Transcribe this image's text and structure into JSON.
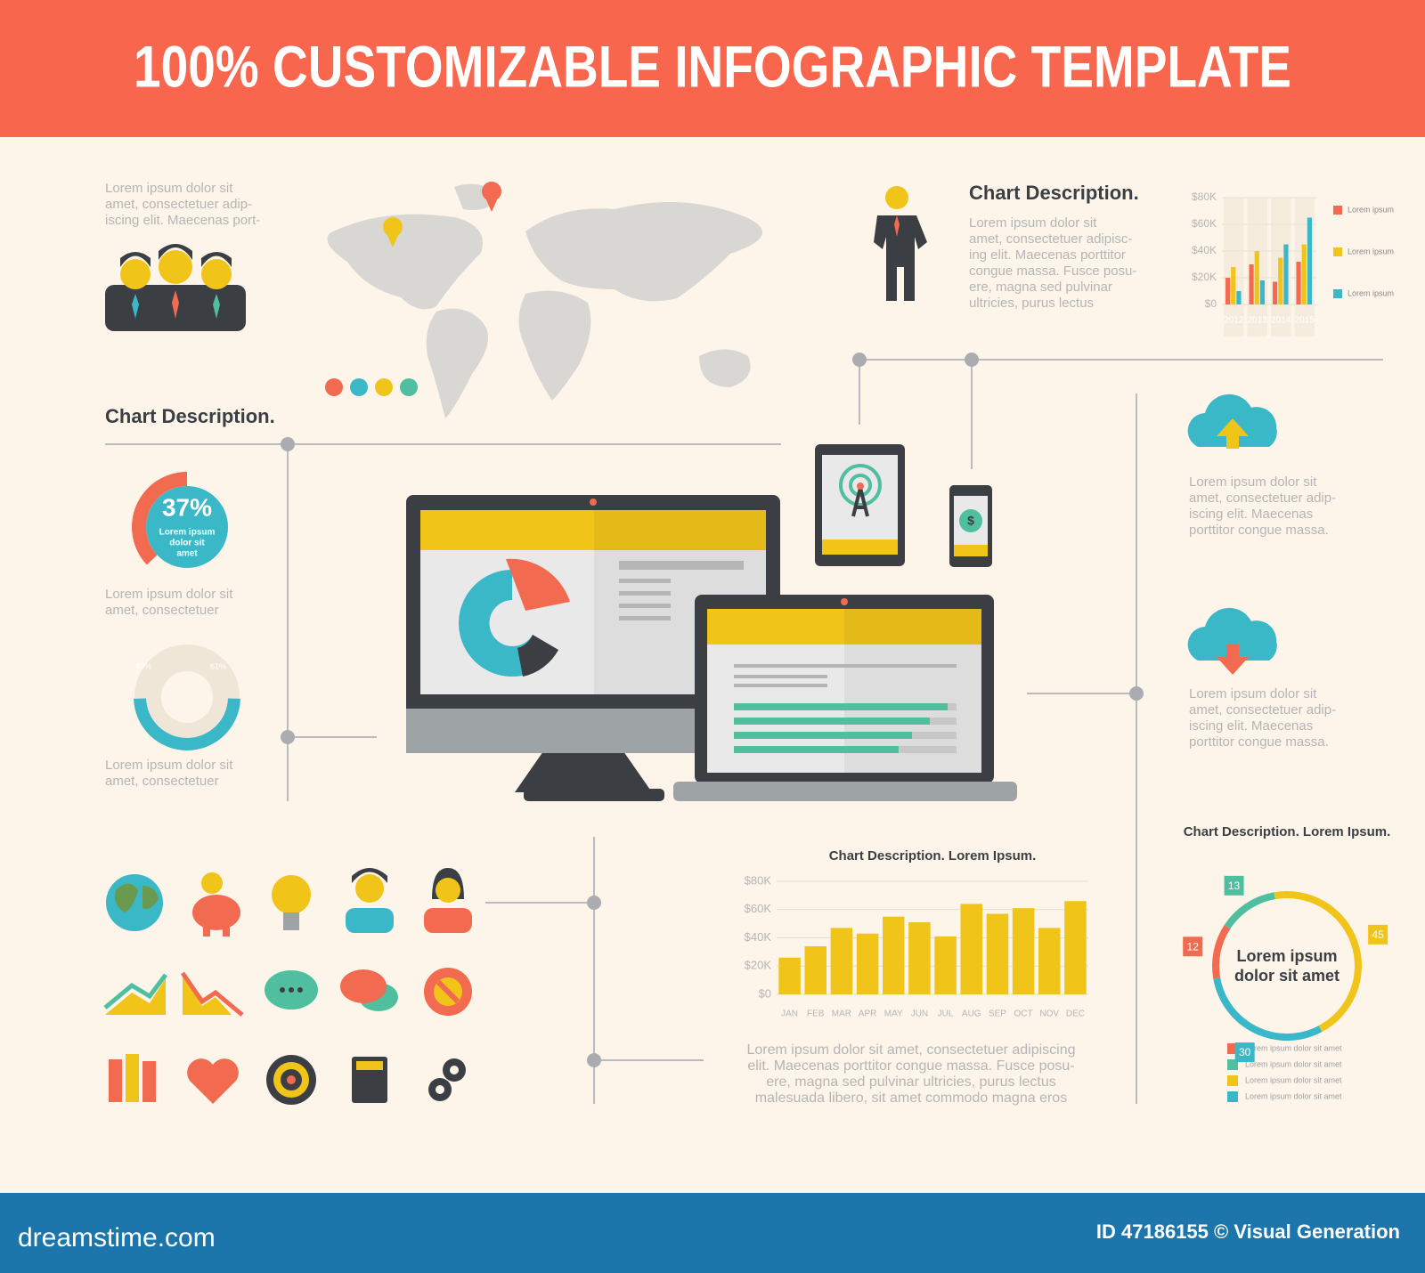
{
  "header": {
    "title": "100% CUSTOMIZABLE INFOGRAPHIC TEMPLATE"
  },
  "intro": {
    "text": [
      "Lorem ipsum dolor sit",
      "amet, consectetuer adip-",
      "iscing elit. Maecenas port-"
    ]
  },
  "left": {
    "title": "Chart Description.",
    "caption_1": [
      "Lorem ipsum dolor sit",
      "amet, consectetuer"
    ],
    "caption_2": [
      "Lorem ipsum dolor sit",
      "amet, consectetuer"
    ]
  },
  "top_right": {
    "title": "Chart Description.",
    "text": [
      "Lorem ipsum dolor sit",
      "amet, consectetuer adipisc-",
      "ing elit. Maecenas porttitor",
      "congue massa. Fusce posu-",
      "ere, magna sed pulvinar",
      "ultricies, purus lectus"
    ]
  },
  "cloud_upload": {
    "text": [
      "Lorem ipsum dolor sit",
      "amet, consectetuer adip-",
      "iscing elit. Maecenas",
      "porttitor congue massa."
    ]
  },
  "cloud_download": {
    "text": [
      "Lorem ipsum dolor sit",
      "amet, consectetuer adip-",
      "iscing elit. Maecenas",
      "porttitor congue massa."
    ]
  },
  "bottom": {
    "text": [
      "Lorem ipsum dolor sit amet, consectetuer adipiscing",
      "elit. Maecenas porttitor congue massa. Fusce posu-",
      "ere, magna sed pulvinar ultricies, purus lectus",
      "malesuada libero, sit amet commodo magna eros"
    ]
  },
  "chart_data": [
    {
      "type": "grouped_bar",
      "categories": [
        "2012",
        "2013",
        "2014",
        "2015"
      ],
      "series": [
        {
          "name": "Lorem ipsum",
          "color": "#f26b50",
          "values": [
            20000,
            30000,
            17000,
            32000
          ]
        },
        {
          "name": "Lorem ipsum",
          "color": "#f0c419",
          "values": [
            28000,
            40000,
            35000,
            45000
          ]
        },
        {
          "name": "Lorem ipsum",
          "color": "#3bb8c8",
          "values": [
            10000,
            18000,
            45000,
            65000
          ]
        }
      ],
      "ylim": [
        0,
        80000
      ],
      "yticks": [
        {
          "value": 0,
          "label": "$0"
        },
        {
          "value": 20000,
          "label": "$20K"
        },
        {
          "value": 40000,
          "label": "$40K"
        },
        {
          "value": 60000,
          "label": "$60K"
        },
        {
          "value": 80000,
          "label": "$80K"
        }
      ],
      "grid": true
    },
    {
      "type": "donut",
      "values": [
        37
      ],
      "value_labels": [
        "37%"
      ],
      "center_text": [
        "Lorem ipsum",
        "dolor sit",
        "amet"
      ],
      "color": "#f26b50",
      "center_color": "#3bb8c8"
    },
    {
      "type": "rings",
      "values": [
        49,
        61
      ],
      "value_labels": [
        "49%",
        "61%"
      ],
      "colors": [
        "#3bb8c8",
        "#f0c419"
      ]
    },
    {
      "type": "bar",
      "title": "Chart Description. Lorem Ipsum.",
      "categories": [
        "JAN",
        "FEB",
        "MAR",
        "APR",
        "MAY",
        "JUN",
        "JUL",
        "AUG",
        "SEP",
        "OCT",
        "NOV",
        "DEC"
      ],
      "values": [
        26000,
        34000,
        47000,
        43000,
        55000,
        51000,
        41000,
        64000,
        57000,
        61000,
        47000,
        66000
      ],
      "color": "#f0c419",
      "ylim": [
        0,
        80000
      ],
      "yticks": [
        {
          "value": 0,
          "label": "$0"
        },
        {
          "value": 20000,
          "label": "$20K"
        },
        {
          "value": 40000,
          "label": "$40K"
        },
        {
          "value": 60000,
          "label": "$60K"
        },
        {
          "value": 80000,
          "label": "$80K"
        }
      ],
      "grid": true
    },
    {
      "type": "ring",
      "title": "Chart Description. Lorem Ipsum.",
      "center_text": [
        "Lorem ipsum",
        "dolor sit amet"
      ],
      "categories": [
        "Lorem ipsum dolor sit amet",
        "Lorem ipsum dolor sit amet",
        "Lorem ipsum dolor sit amet",
        "Lorem ipsum dolor sit amet"
      ],
      "values": [
        12,
        13,
        45,
        30
      ],
      "colors": [
        "#f26b50",
        "#4fbfa0",
        "#f0c419",
        "#3bb8c8"
      ]
    }
  ],
  "footer": {
    "site": "dreamstime.com",
    "credit": "ID 47186155 © Visual Generation"
  }
}
